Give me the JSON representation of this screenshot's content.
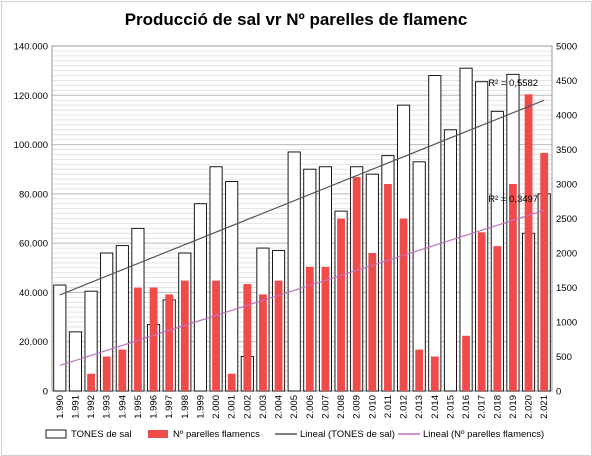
{
  "chart_data": {
    "type": "bar",
    "title": "Producció de sal vr Nº parelles de flamenc",
    "categories": [
      "1.990",
      "1.991",
      "1.992",
      "1.993",
      "1.994",
      "1.995",
      "1.996",
      "1.997",
      "1.998",
      "1.999",
      "2.000",
      "2.001",
      "2.002",
      "2.003",
      "2.004",
      "2.005",
      "2.006",
      "2.007",
      "2.008",
      "2.009",
      "2.010",
      "2.011",
      "2.012",
      "2.013",
      "2.014",
      "2.015",
      "2.016",
      "2.017",
      "2.018",
      "2.019",
      "2.020",
      "2.021"
    ],
    "y_left": {
      "ylim": [
        0,
        140000
      ],
      "ticks": [
        "0",
        "20.000",
        "40.000",
        "60.000",
        "80.000",
        "100.000",
        "120.000",
        "140.000"
      ],
      "tick_values": [
        0,
        20000,
        40000,
        60000,
        80000,
        100000,
        120000,
        140000
      ]
    },
    "y_right": {
      "ylim": [
        0,
        5000
      ],
      "ticks": [
        "0",
        "500",
        "1000",
        "1500",
        "2000",
        "2500",
        "3000",
        "3500",
        "4000",
        "4500",
        "5000"
      ],
      "tick_values": [
        0,
        500,
        1000,
        1500,
        2000,
        2500,
        3000,
        3500,
        4000,
        4500,
        5000
      ]
    },
    "series": [
      {
        "name": "TONES de sal",
        "axis": "left",
        "color": "#ffffff",
        "stroke": "#000000",
        "values": [
          43000,
          24000,
          40500,
          56000,
          59000,
          66000,
          27000,
          37000,
          56000,
          76000,
          91000,
          85000,
          14000,
          58000,
          57000,
          97000,
          90000,
          91000,
          73000,
          91000,
          88000,
          95500,
          116000,
          93000,
          128000,
          106000,
          131000,
          125500,
          113500,
          128500,
          64000,
          80000
        ]
      },
      {
        "name": "Nº parelles flamencs",
        "axis": "right",
        "color": "#f04b4b",
        "stroke": "#f04b4b",
        "values": [
          0,
          0,
          250,
          500,
          600,
          1500,
          1500,
          1400,
          1600,
          0,
          1600,
          250,
          1550,
          1400,
          1600,
          0,
          1800,
          1800,
          2500,
          3100,
          2000,
          3000,
          2500,
          600,
          500,
          0,
          800,
          2300,
          2100,
          3000,
          4300,
          3450
        ]
      }
    ],
    "trendlines": [
      {
        "name": "Lineal (TONES de sal)",
        "axis": "left",
        "color": "#555555",
        "r2_label": "R² = 0,5582",
        "start": 39000,
        "end": 118000
      },
      {
        "name": "Lineal (Nº parelles flamencs)",
        "axis": "right",
        "color": "#c070c0",
        "r2_label": "R² = 0,3497",
        "start": 370,
        "end": 2620
      }
    ],
    "grid": true,
    "legend_position": "bottom"
  }
}
